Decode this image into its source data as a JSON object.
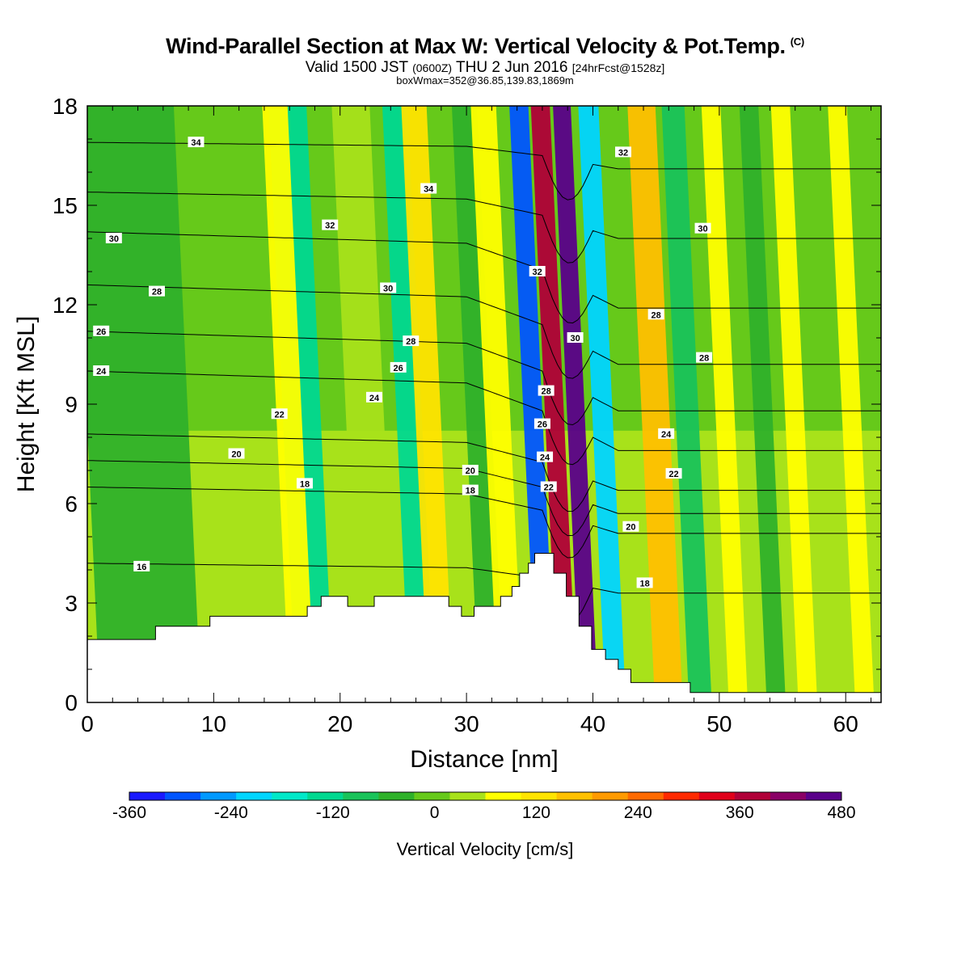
{
  "header": {
    "title": "Wind-Parallel Section at Max W: Vertical Velocity & Pot.Temp.",
    "title_mark": "(C)",
    "subtitle_main": "Valid 1500 JST",
    "subtitle_z": "(0600Z)",
    "subtitle_date": "THU 2 Jun 2016",
    "subtitle_fcst": "[24hrFcst@1528z]",
    "box_info": "boxWmax=352@36.85,139.83,1869m"
  },
  "chart_data": {
    "type": "heatmap",
    "xlabel": "Distance [nm]",
    "ylabel": "Height [Kft MSL]",
    "xlim": [
      0,
      62.8
    ],
    "ylim": [
      0,
      18
    ],
    "x_ticks": [
      "0",
      "10",
      "20",
      "30",
      "40",
      "50",
      "60"
    ],
    "y_ticks": [
      "0",
      "3",
      "6",
      "9",
      "12",
      "15",
      "18"
    ],
    "colorbar": {
      "title": "Vertical Velocity [cm/s]",
      "range": [
        -360,
        480
      ],
      "labels": [
        "-360",
        "-240",
        "-120",
        "0",
        "120",
        "240",
        "360",
        "480"
      ],
      "colors": [
        "#1a1aff",
        "#0055ff",
        "#0099ff",
        "#00d5ff",
        "#00e8c8",
        "#00d890",
        "#19c35a",
        "#2fb12a",
        "#66c91a",
        "#a8e21a",
        "#ffff00",
        "#ffe400",
        "#ffc000",
        "#ff9a00",
        "#ff6a00",
        "#ff2a00",
        "#e0001a",
        "#b00038",
        "#8a0066",
        "#5a008a"
      ]
    },
    "vertical_velocity_bands": [
      {
        "x": 5,
        "w": 8,
        "v": -40
      },
      {
        "x": 18,
        "w": 3,
        "v": -120
      },
      {
        "x": 17,
        "w": 2,
        "v": 90
      },
      {
        "x": 23,
        "w": 3,
        "v": 40
      },
      {
        "x": 26.5,
        "w": 2,
        "v": -120
      },
      {
        "x": 28,
        "w": 2,
        "v": 120
      },
      {
        "x": 32,
        "w": 2,
        "v": -60
      },
      {
        "x": 33.5,
        "w": 2,
        "v": 90
      },
      {
        "x": 36.3,
        "w": 1.5,
        "v": -300
      },
      {
        "x": 38,
        "w": 1.5,
        "v": 360
      },
      {
        "x": 39.7,
        "w": 1.4,
        "v": 480
      },
      {
        "x": 41.8,
        "w": 1.6,
        "v": -220
      },
      {
        "x": 46,
        "w": 2.2,
        "v": 150
      },
      {
        "x": 48.5,
        "w": 1.8,
        "v": -80
      },
      {
        "x": 51.5,
        "w": 1.5,
        "v": 90
      },
      {
        "x": 54.5,
        "w": 1.5,
        "v": -40
      },
      {
        "x": 57,
        "w": 1.5,
        "v": 70
      },
      {
        "x": 61.5,
        "w": 1.5,
        "v": 80
      }
    ],
    "terrain": [
      [
        0,
        1.9
      ],
      [
        5.4,
        1.9
      ],
      [
        5.4,
        2.3
      ],
      [
        9.7,
        2.3
      ],
      [
        9.7,
        2.6
      ],
      [
        17.4,
        2.6
      ],
      [
        17.4,
        2.9
      ],
      [
        18.5,
        2.9
      ],
      [
        18.5,
        3.2
      ],
      [
        20.6,
        3.2
      ],
      [
        20.6,
        2.9
      ],
      [
        22.7,
        2.9
      ],
      [
        22.7,
        3.2
      ],
      [
        28.6,
        3.2
      ],
      [
        28.6,
        2.9
      ],
      [
        29.6,
        2.9
      ],
      [
        29.6,
        2.6
      ],
      [
        30.6,
        2.6
      ],
      [
        30.6,
        2.9
      ],
      [
        32.7,
        2.9
      ],
      [
        32.7,
        3.2
      ],
      [
        33.6,
        3.2
      ],
      [
        33.6,
        3.5
      ],
      [
        34.2,
        3.5
      ],
      [
        34.2,
        3.9
      ],
      [
        34.9,
        3.9
      ],
      [
        34.9,
        4.2
      ],
      [
        35.4,
        4.2
      ],
      [
        35.4,
        4.5
      ],
      [
        36.9,
        4.5
      ],
      [
        36.9,
        3.9
      ],
      [
        37.9,
        3.9
      ],
      [
        37.9,
        3.2
      ],
      [
        38.9,
        3.2
      ],
      [
        38.9,
        2.3
      ],
      [
        39.9,
        2.3
      ],
      [
        39.9,
        1.6
      ],
      [
        41.0,
        1.6
      ],
      [
        41.0,
        1.3
      ],
      [
        42.0,
        1.3
      ],
      [
        42.0,
        1.0
      ],
      [
        43.0,
        1.0
      ],
      [
        43.0,
        0.6
      ],
      [
        47.7,
        0.6
      ],
      [
        47.7,
        0.3
      ],
      [
        51.2,
        0.3
      ],
      [
        62.8,
        0.3
      ],
      [
        62.8,
        0
      ],
      [
        0,
        0
      ]
    ],
    "theta_contours": [
      {
        "label": "16",
        "y0": 4.2,
        "yr": 3.3
      },
      {
        "label": "18",
        "y0": 6.5,
        "yr": 5.1
      },
      {
        "label": "20",
        "y0": 7.3,
        "yr": 5.7
      },
      {
        "label": "22",
        "y0": 8.1,
        "yr": 6.4
      },
      {
        "label": "24",
        "y0": 10.0,
        "yr": 7.6
      },
      {
        "label": "26",
        "y0": 11.2,
        "yr": 8.8
      },
      {
        "label": "28",
        "y0": 12.6,
        "yr": 10.2
      },
      {
        "label": "30",
        "y0": 14.2,
        "yr": 11.9
      },
      {
        "label": "32",
        "y0": 15.4,
        "yr": 14.0
      },
      {
        "label": "34",
        "y0": 16.9,
        "yr": 16.1
      }
    ],
    "contour_labels": [
      {
        "t": "34",
        "x": 8.6,
        "y": 16.9
      },
      {
        "t": "34",
        "x": 27.0,
        "y": 15.5
      },
      {
        "t": "32",
        "x": 19.2,
        "y": 14.4
      },
      {
        "t": "32",
        "x": 42.4,
        "y": 16.6
      },
      {
        "t": "32",
        "x": 35.6,
        "y": 13.0
      },
      {
        "t": "30",
        "x": 2.1,
        "y": 14.0
      },
      {
        "t": "30",
        "x": 23.8,
        "y": 12.5
      },
      {
        "t": "30",
        "x": 48.7,
        "y": 14.3
      },
      {
        "t": "30",
        "x": 38.6,
        "y": 11.0
      },
      {
        "t": "28",
        "x": 5.5,
        "y": 12.4
      },
      {
        "t": "28",
        "x": 25.6,
        "y": 10.9
      },
      {
        "t": "28",
        "x": 45.0,
        "y": 11.7
      },
      {
        "t": "28",
        "x": 48.8,
        "y": 10.4
      },
      {
        "t": "28",
        "x": 36.3,
        "y": 9.4
      },
      {
        "t": "26",
        "x": 1.1,
        "y": 11.2
      },
      {
        "t": "26",
        "x": 24.6,
        "y": 10.1
      },
      {
        "t": "26",
        "x": 36.0,
        "y": 8.4
      },
      {
        "t": "24",
        "x": 1.1,
        "y": 10.0
      },
      {
        "t": "24",
        "x": 22.7,
        "y": 9.2
      },
      {
        "t": "24",
        "x": 45.8,
        "y": 8.1
      },
      {
        "t": "24",
        "x": 36.2,
        "y": 7.4
      },
      {
        "t": "22",
        "x": 15.2,
        "y": 8.7
      },
      {
        "t": "22",
        "x": 46.4,
        "y": 6.9
      },
      {
        "t": "22",
        "x": 36.5,
        "y": 6.5
      },
      {
        "t": "20",
        "x": 11.8,
        "y": 7.5
      },
      {
        "t": "20",
        "x": 30.3,
        "y": 7.0
      },
      {
        "t": "20",
        "x": 43.0,
        "y": 5.3
      },
      {
        "t": "18",
        "x": 17.2,
        "y": 6.6
      },
      {
        "t": "18",
        "x": 30.3,
        "y": 6.4
      },
      {
        "t": "18",
        "x": 44.1,
        "y": 3.6
      },
      {
        "t": "16",
        "x": 4.3,
        "y": 4.1
      }
    ]
  }
}
